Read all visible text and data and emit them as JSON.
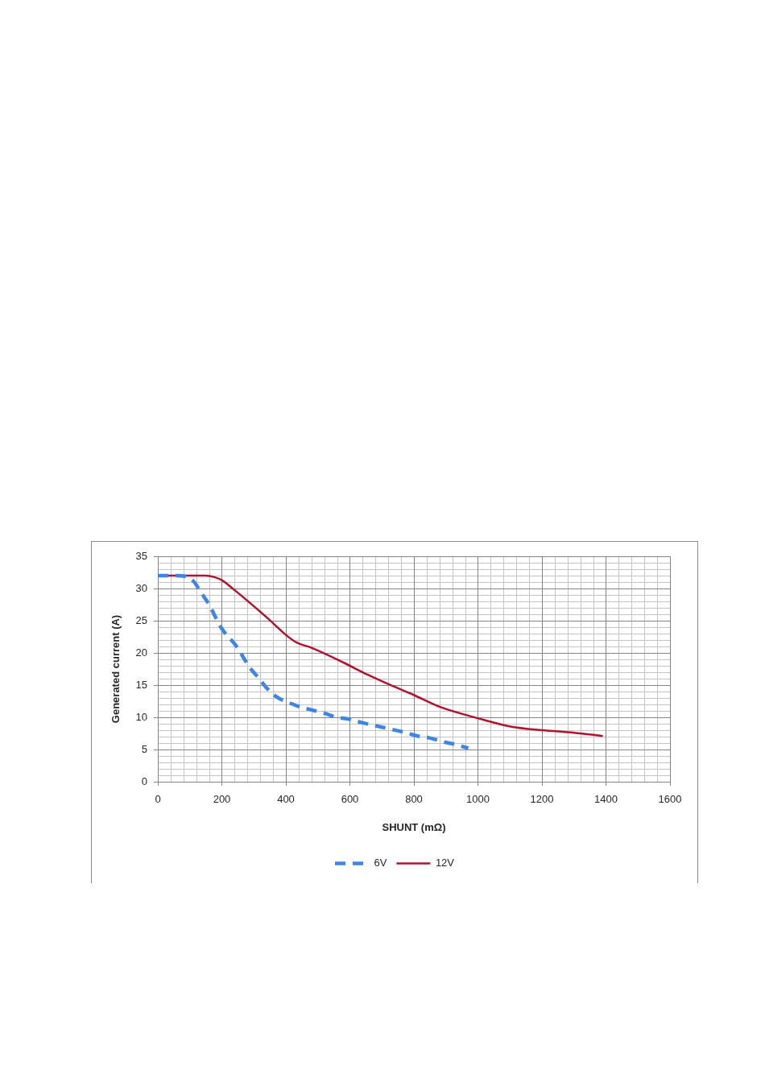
{
  "chart_data": {
    "type": "line",
    "xlabel": "SHUNT (mΩ)",
    "ylabel": "Generated current (A)",
    "xlim": [
      0,
      1600
    ],
    "xticks": [
      0,
      200,
      400,
      600,
      800,
      1000,
      1200,
      1400,
      1600
    ],
    "ylim": [
      0,
      35
    ],
    "yticks": [
      0,
      5,
      10,
      15,
      20,
      25,
      30,
      35
    ],
    "grid": true,
    "legend": "bottom",
    "marker": "none",
    "series": [
      {
        "name": "6V",
        "color": "#3d85e8",
        "line_style": "dashed",
        "x": [
          0,
          50,
          84,
          112,
          131,
          160,
          198,
          246,
          289,
          317,
          341,
          370,
          408,
          446,
          484,
          522,
          560,
          598,
          636,
          679,
          723,
          769,
          811,
          849,
          891,
          928,
          970
        ],
        "values": [
          32,
          32,
          31.9,
          31.1,
          29.7,
          27.5,
          23.9,
          21.0,
          17.6,
          16.0,
          14.5,
          13.2,
          12.3,
          11.6,
          11.1,
          10.6,
          10.0,
          9.7,
          9.2,
          8.7,
          8.2,
          7.7,
          7.1,
          6.8,
          6.2,
          5.8,
          5.2
        ]
      },
      {
        "name": "12V",
        "color": "#b3122e",
        "line_style": "solid",
        "x": [
          0,
          50,
          100,
          150,
          175,
          200,
          241,
          287,
          345,
          400,
          434,
          480,
          580,
          656,
          714,
          798,
          882,
          1004,
          1109,
          1201,
          1301,
          1390
        ],
        "values": [
          32,
          32,
          32,
          32,
          31.8,
          31.3,
          29.7,
          27.8,
          25.3,
          22.8,
          21.6,
          20.8,
          18.5,
          16.6,
          15.3,
          13.5,
          11.6,
          9.8,
          8.5,
          8.0,
          7.6,
          7.1
        ]
      }
    ]
  }
}
